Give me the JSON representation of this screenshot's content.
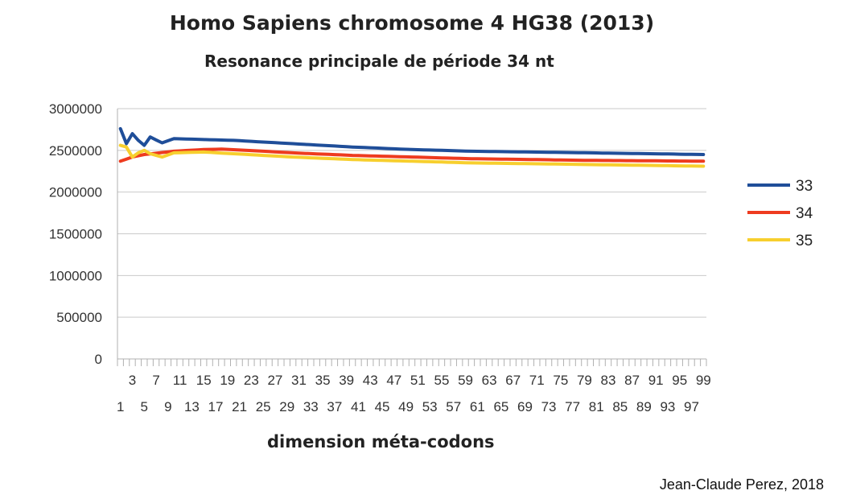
{
  "chart_data": {
    "type": "line",
    "title": "Homo Sapiens chromosome 4  HG38 (2013)",
    "subtitle": "Resonance principale de période 34 nt",
    "xlabel": "dimension méta-codons",
    "ylabel": "",
    "x_range": [
      1,
      99
    ],
    "ylim": [
      0,
      3000000
    ],
    "yticks": [
      0,
      500000,
      1000000,
      1500000,
      2000000,
      2500000,
      3000000
    ],
    "grid": "horizontal",
    "legend": "right",
    "series": [
      {
        "name": "33",
        "color": "#1f4e99",
        "points": [
          [
            1,
            2760000
          ],
          [
            2,
            2580000
          ],
          [
            3,
            2700000
          ],
          [
            4,
            2620000
          ],
          [
            5,
            2560000
          ],
          [
            6,
            2660000
          ],
          [
            8,
            2590000
          ],
          [
            10,
            2640000
          ],
          [
            20,
            2620000
          ],
          [
            30,
            2580000
          ],
          [
            40,
            2540000
          ],
          [
            50,
            2510000
          ],
          [
            60,
            2490000
          ],
          [
            70,
            2480000
          ],
          [
            80,
            2470000
          ],
          [
            90,
            2460000
          ],
          [
            99,
            2450000
          ]
        ]
      },
      {
        "name": "34",
        "color": "#ee3b1f",
        "points": [
          [
            1,
            2370000
          ],
          [
            3,
            2420000
          ],
          [
            5,
            2450000
          ],
          [
            10,
            2490000
          ],
          [
            15,
            2510000
          ],
          [
            18,
            2515000
          ],
          [
            25,
            2490000
          ],
          [
            30,
            2470000
          ],
          [
            40,
            2440000
          ],
          [
            50,
            2420000
          ],
          [
            60,
            2400000
          ],
          [
            70,
            2390000
          ],
          [
            80,
            2380000
          ],
          [
            90,
            2375000
          ],
          [
            99,
            2370000
          ]
        ]
      },
      {
        "name": "35",
        "color": "#f7cf2e",
        "points": [
          [
            1,
            2560000
          ],
          [
            2,
            2540000
          ],
          [
            3,
            2420000
          ],
          [
            4,
            2470000
          ],
          [
            5,
            2500000
          ],
          [
            6,
            2460000
          ],
          [
            8,
            2420000
          ],
          [
            10,
            2470000
          ],
          [
            15,
            2480000
          ],
          [
            20,
            2460000
          ],
          [
            30,
            2420000
          ],
          [
            40,
            2390000
          ],
          [
            50,
            2370000
          ],
          [
            60,
            2350000
          ],
          [
            70,
            2340000
          ],
          [
            80,
            2330000
          ],
          [
            90,
            2320000
          ],
          [
            99,
            2310000
          ]
        ]
      }
    ]
  },
  "credit": "Jean-Claude Perez, 2018"
}
